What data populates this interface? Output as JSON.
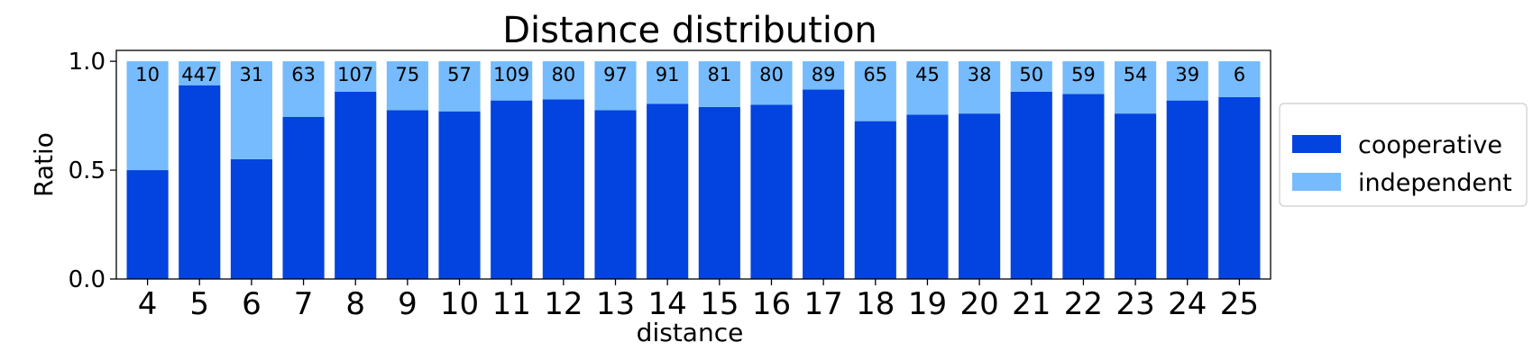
{
  "chart_data": {
    "type": "bar",
    "stacked": true,
    "title": "Distance distribution",
    "xlabel": "distance",
    "ylabel": "Ratio",
    "ylim": [
      0,
      1.05
    ],
    "yticks": [
      "0.0",
      "0.5",
      "1.0"
    ],
    "categories": [
      "4",
      "5",
      "6",
      "7",
      "8",
      "9",
      "10",
      "11",
      "12",
      "13",
      "14",
      "15",
      "16",
      "17",
      "18",
      "19",
      "20",
      "21",
      "22",
      "23",
      "24",
      "25"
    ],
    "counts": [
      "10",
      "447",
      "31",
      "63",
      "107",
      "75",
      "57",
      "109",
      "80",
      "97",
      "91",
      "81",
      "80",
      "89",
      "65",
      "45",
      "38",
      "50",
      "59",
      "54",
      "39",
      "6"
    ],
    "series": [
      {
        "name": "cooperative",
        "color": "#0343df",
        "values": [
          0.5,
          0.89,
          0.55,
          0.745,
          0.86,
          0.775,
          0.77,
          0.82,
          0.825,
          0.775,
          0.805,
          0.79,
          0.8,
          0.87,
          0.725,
          0.755,
          0.76,
          0.86,
          0.85,
          0.76,
          0.82,
          0.835
        ]
      },
      {
        "name": "independent",
        "color": "#75bbfd",
        "values": [
          0.5,
          0.11,
          0.45,
          0.255,
          0.14,
          0.225,
          0.23,
          0.18,
          0.175,
          0.225,
          0.195,
          0.21,
          0.2,
          0.13,
          0.275,
          0.245,
          0.24,
          0.14,
          0.15,
          0.24,
          0.18,
          0.165
        ]
      }
    ],
    "legend_position": "right"
  }
}
